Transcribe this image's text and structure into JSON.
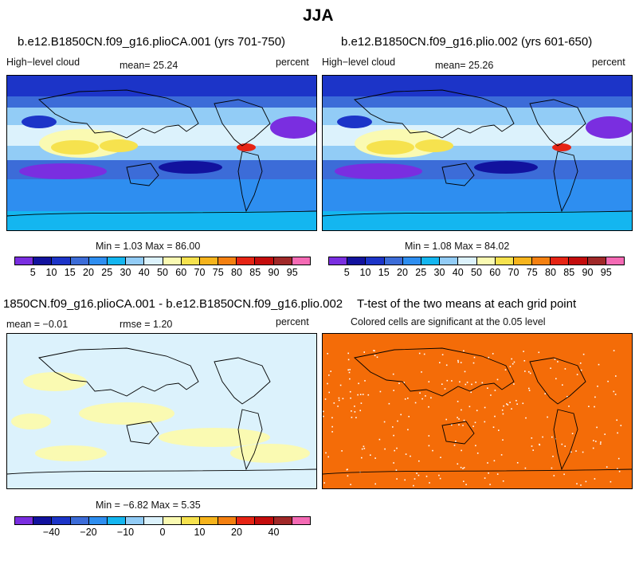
{
  "figure": {
    "title": "JJA"
  },
  "chart_data": [
    {
      "type": "heatmap",
      "title": "b.e12.B1850CN.f09_g16.plioCA.001 (yrs 701-750)",
      "left_label": "High−level cloud",
      "mean_text": "mean=  25.24",
      "units": "percent",
      "minmax_text": "Min =    1.03 Max =   86.00",
      "colorbar": {
        "levels": [
          "5",
          "10",
          "15",
          "20",
          "25",
          "30",
          "40",
          "50",
          "60",
          "70",
          "75",
          "80",
          "85",
          "90",
          "95"
        ],
        "colors": [
          "#7a2ee0",
          "#12129e",
          "#1c34c8",
          "#3c6cd8",
          "#2e8ef0",
          "#14b6f0",
          "#92ccf6",
          "#dcf2fc",
          "#fafab2",
          "#f6e24e",
          "#f6b41c",
          "#f48010",
          "#e62414",
          "#c40c0c",
          "#a02828",
          "#f46ab4"
        ]
      }
    },
    {
      "type": "heatmap",
      "title": "b.e12.B1850CN.f09_g16.plio.002 (yrs 601-650)",
      "left_label": "High−level cloud",
      "mean_text": "mean=  25.26",
      "units": "percent",
      "minmax_text": "Min =    1.08 Max =   84.02",
      "colorbar": {
        "levels": [
          "5",
          "10",
          "15",
          "20",
          "25",
          "30",
          "40",
          "50",
          "60",
          "70",
          "75",
          "80",
          "85",
          "90",
          "95"
        ],
        "colors": [
          "#7a2ee0",
          "#12129e",
          "#1c34c8",
          "#3c6cd8",
          "#2e8ef0",
          "#14b6f0",
          "#92ccf6",
          "#dcf2fc",
          "#fafab2",
          "#f6e24e",
          "#f6b41c",
          "#f48010",
          "#e62414",
          "#c40c0c",
          "#a02828",
          "#f46ab4"
        ]
      }
    },
    {
      "type": "heatmap",
      "title": "1850CN.f09_g16.plioCA.001 - b.e12.B1850CN.f09_g16.plio.002",
      "mean_text": "mean =  −0.01",
      "rmse_text": "rmse =    1.20",
      "units": "percent",
      "minmax_text": "Min =  −6.82 Max =    5.35",
      "colorbar": {
        "ticks": [
          "−40",
          "−20",
          "−10",
          "0",
          "10",
          "20",
          "40"
        ],
        "colors": [
          "#7a2ee0",
          "#12129e",
          "#1c34c8",
          "#3c6cd8",
          "#2e8ef0",
          "#14b6f0",
          "#92ccf6",
          "#dcf2fc",
          "#fafab2",
          "#f6e24e",
          "#f6b41c",
          "#f48010",
          "#e62414",
          "#c40c0c",
          "#a02828",
          "#f46ab4"
        ]
      }
    },
    {
      "type": "heatmap",
      "title": "T-test of the two means at each grid point",
      "subtitle": "Colored cells are significant at the 0.05 level",
      "fill_color": "#f46c08"
    }
  ]
}
